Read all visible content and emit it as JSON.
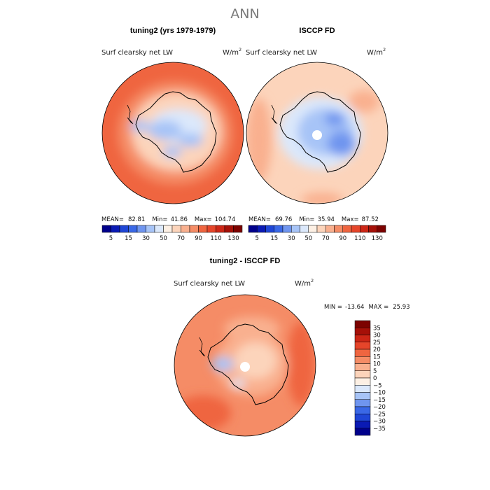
{
  "chart_data": {
    "type": "heatmap",
    "title": "ANN",
    "panels": [
      {
        "name": "tuning2 (yrs 1979-1979)",
        "variable": "Surf clearsky net LW",
        "units_base": "W/m",
        "units_exp": "2",
        "stats": {
          "mean_label": "MEAN=",
          "mean": "82.81",
          "min_label": "Min=",
          "min": "41.86",
          "max_label": "Max=",
          "max": "104.74"
        },
        "dominant_value": 100,
        "continent_value": 45,
        "pole_missing": false
      },
      {
        "name": "ISCCP FD",
        "variable": "Surf clearsky net LW",
        "units_base": "W/m",
        "units_exp": "2",
        "stats": {
          "mean_label": "MEAN=",
          "mean": "69.76",
          "min_label": "Min=",
          "min": "35.94",
          "max_label": "Max=",
          "max": "87.52"
        },
        "dominant_value": 75,
        "continent_value": 40,
        "pole_missing": true
      },
      {
        "name": "tuning2 - ISCCP FD",
        "variable": "Surf clearsky net LW",
        "units_base": "W/m",
        "units_exp": "2",
        "stats": {
          "min_label": "MIN =",
          "min": "-13.64",
          "max_label": "MAX =",
          "max": "25.93"
        },
        "dominant_value": 20,
        "continent_value": 12,
        "pole_missing": true
      }
    ],
    "colorbar_abs": {
      "orientation": "horizontal",
      "tick_labels": [
        "5",
        "15",
        "30",
        "50",
        "70",
        "90",
        "110",
        "130"
      ],
      "colors": [
        "#00008b",
        "#0a1ab4",
        "#1f46d6",
        "#3a68e6",
        "#6f95ef",
        "#a7c4f7",
        "#dbe8fb",
        "#fdf0e4",
        "#fcd4bb",
        "#f9b08f",
        "#f58c66",
        "#ef6540",
        "#e5452a",
        "#cc2616",
        "#a51008",
        "#7c0200"
      ]
    },
    "colorbar_diff": {
      "orientation": "vertical",
      "tick_labels": [
        "35",
        "30",
        "25",
        "20",
        "15",
        "10",
        "5",
        "0",
        "−5",
        "−10",
        "−15",
        "−20",
        "−25",
        "−30",
        "−35"
      ],
      "colors": [
        "#7c0200",
        "#a51008",
        "#cc2616",
        "#e5452a",
        "#ef6540",
        "#f58c66",
        "#f9b08f",
        "#fcd4bb",
        "#fdf0e4",
        "#dbe8fb",
        "#a7c4f7",
        "#6f95ef",
        "#3a68e6",
        "#1f46d6",
        "#0a1ab4",
        "#00008b"
      ]
    }
  }
}
